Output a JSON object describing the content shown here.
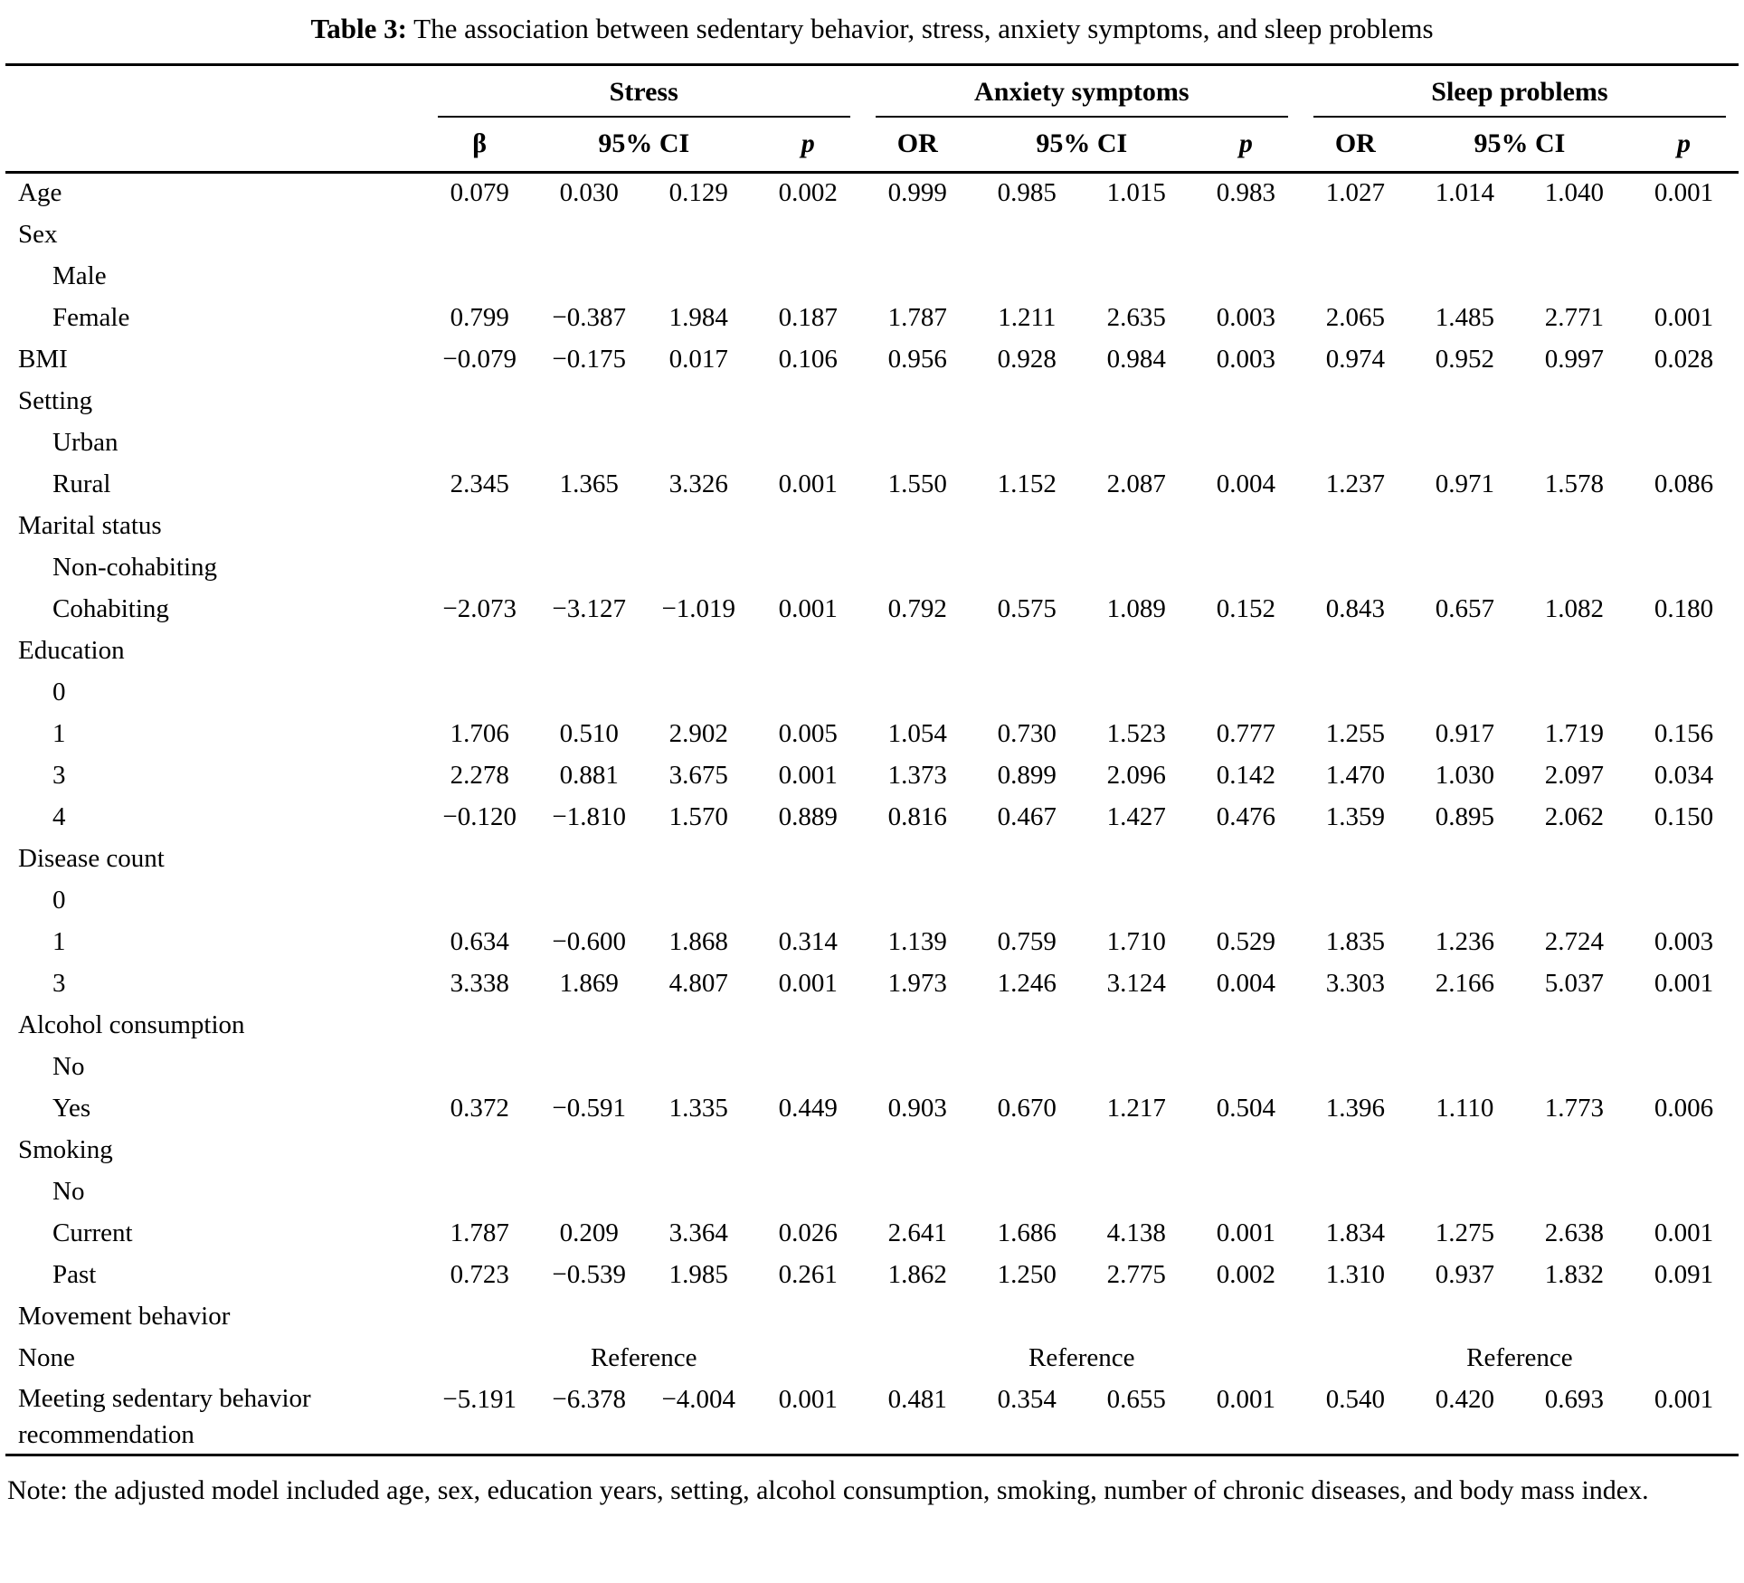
{
  "title": {
    "bold": "Table 3:",
    "rest": " The association between sedentary behavior, stress, anxiety symptoms, and sleep problems"
  },
  "groups": [
    {
      "name": "Stress",
      "effect": "β",
      "ci": "95% CI",
      "p": "p"
    },
    {
      "name": "Anxiety symptoms",
      "effect": "OR",
      "ci": "95% CI",
      "p": "p"
    },
    {
      "name": "Sleep problems",
      "effect": "OR",
      "ci": "95% CI",
      "p": "p"
    }
  ],
  "reference_label": "Reference",
  "table": {
    "rows": [
      {
        "label": "Age",
        "indent": false,
        "stress": [
          "0.079",
          "0.030",
          "0.129",
          "0.002"
        ],
        "anxiety": [
          "0.999",
          "0.985",
          "1.015",
          "0.983"
        ],
        "sleep": [
          "1.027",
          "1.014",
          "1.040",
          "0.001"
        ]
      },
      {
        "label": "Sex",
        "indent": false
      },
      {
        "label": "Male",
        "indent": true
      },
      {
        "label": "Female",
        "indent": true,
        "stress": [
          "0.799",
          "−0.387",
          "1.984",
          "0.187"
        ],
        "anxiety": [
          "1.787",
          "1.211",
          "2.635",
          "0.003"
        ],
        "sleep": [
          "2.065",
          "1.485",
          "2.771",
          "0.001"
        ]
      },
      {
        "label": "BMI",
        "indent": false,
        "stress": [
          "−0.079",
          "−0.175",
          "0.017",
          "0.106"
        ],
        "anxiety": [
          "0.956",
          "0.928",
          "0.984",
          "0.003"
        ],
        "sleep": [
          "0.974",
          "0.952",
          "0.997",
          "0.028"
        ]
      },
      {
        "label": "Setting",
        "indent": false
      },
      {
        "label": "Urban",
        "indent": true
      },
      {
        "label": "Rural",
        "indent": true,
        "stress": [
          "2.345",
          "1.365",
          "3.326",
          "0.001"
        ],
        "anxiety": [
          "1.550",
          "1.152",
          "2.087",
          "0.004"
        ],
        "sleep": [
          "1.237",
          "0.971",
          "1.578",
          "0.086"
        ]
      },
      {
        "label": "Marital status",
        "indent": false
      },
      {
        "label": "Non-cohabiting",
        "indent": true
      },
      {
        "label": "Cohabiting",
        "indent": true,
        "stress": [
          "−2.073",
          "−3.127",
          "−1.019",
          "0.001"
        ],
        "anxiety": [
          "0.792",
          "0.575",
          "1.089",
          "0.152"
        ],
        "sleep": [
          "0.843",
          "0.657",
          "1.082",
          "0.180"
        ]
      },
      {
        "label": "Education",
        "indent": false
      },
      {
        "label": "0",
        "indent": true
      },
      {
        "label": "1",
        "indent": true,
        "stress": [
          "1.706",
          "0.510",
          "2.902",
          "0.005"
        ],
        "anxiety": [
          "1.054",
          "0.730",
          "1.523",
          "0.777"
        ],
        "sleep": [
          "1.255",
          "0.917",
          "1.719",
          "0.156"
        ]
      },
      {
        "label": "3",
        "indent": true,
        "stress": [
          "2.278",
          "0.881",
          "3.675",
          "0.001"
        ],
        "anxiety": [
          "1.373",
          "0.899",
          "2.096",
          "0.142"
        ],
        "sleep": [
          "1.470",
          "1.030",
          "2.097",
          "0.034"
        ]
      },
      {
        "label": "4",
        "indent": true,
        "stress": [
          "−0.120",
          "−1.810",
          "1.570",
          "0.889"
        ],
        "anxiety": [
          "0.816",
          "0.467",
          "1.427",
          "0.476"
        ],
        "sleep": [
          "1.359",
          "0.895",
          "2.062",
          "0.150"
        ]
      },
      {
        "label": "Disease count",
        "indent": false
      },
      {
        "label": "0",
        "indent": true
      },
      {
        "label": "1",
        "indent": true,
        "stress": [
          "0.634",
          "−0.600",
          "1.868",
          "0.314"
        ],
        "anxiety": [
          "1.139",
          "0.759",
          "1.710",
          "0.529"
        ],
        "sleep": [
          "1.835",
          "1.236",
          "2.724",
          "0.003"
        ]
      },
      {
        "label": "3",
        "indent": true,
        "stress": [
          "3.338",
          "1.869",
          "4.807",
          "0.001"
        ],
        "anxiety": [
          "1.973",
          "1.246",
          "3.124",
          "0.004"
        ],
        "sleep": [
          "3.303",
          "2.166",
          "5.037",
          "0.001"
        ]
      },
      {
        "label": "Alcohol consumption",
        "indent": false
      },
      {
        "label": "No",
        "indent": true
      },
      {
        "label": "Yes",
        "indent": true,
        "stress": [
          "0.372",
          "−0.591",
          "1.335",
          "0.449"
        ],
        "anxiety": [
          "0.903",
          "0.670",
          "1.217",
          "0.504"
        ],
        "sleep": [
          "1.396",
          "1.110",
          "1.773",
          "0.006"
        ]
      },
      {
        "label": "Smoking",
        "indent": false
      },
      {
        "label": "No",
        "indent": true
      },
      {
        "label": "Current",
        "indent": true,
        "stress": [
          "1.787",
          "0.209",
          "3.364",
          "0.026"
        ],
        "anxiety": [
          "2.641",
          "1.686",
          "4.138",
          "0.001"
        ],
        "sleep": [
          "1.834",
          "1.275",
          "2.638",
          "0.001"
        ]
      },
      {
        "label": "Past",
        "indent": true,
        "stress": [
          "0.723",
          "−0.539",
          "1.985",
          "0.261"
        ],
        "anxiety": [
          "1.862",
          "1.250",
          "2.775",
          "0.002"
        ],
        "sleep": [
          "1.310",
          "0.937",
          "1.832",
          "0.091"
        ]
      },
      {
        "label": "Movement behavior",
        "indent": false
      },
      {
        "label": "None",
        "indent": false,
        "reference": true
      },
      {
        "label": "Meeting sedentary behavior recommendation",
        "indent": false,
        "wrap": true,
        "stress": [
          "−5.191",
          "−6.378",
          "−4.004",
          "0.001"
        ],
        "anxiety": [
          "0.481",
          "0.354",
          "0.655",
          "0.001"
        ],
        "sleep": [
          "0.540",
          "0.420",
          "0.693",
          "0.001"
        ]
      }
    ]
  },
  "note": "Note: the adjusted model included age, sex, education years, setting, alcohol consumption, smoking, number of chronic diseases, and body mass index."
}
